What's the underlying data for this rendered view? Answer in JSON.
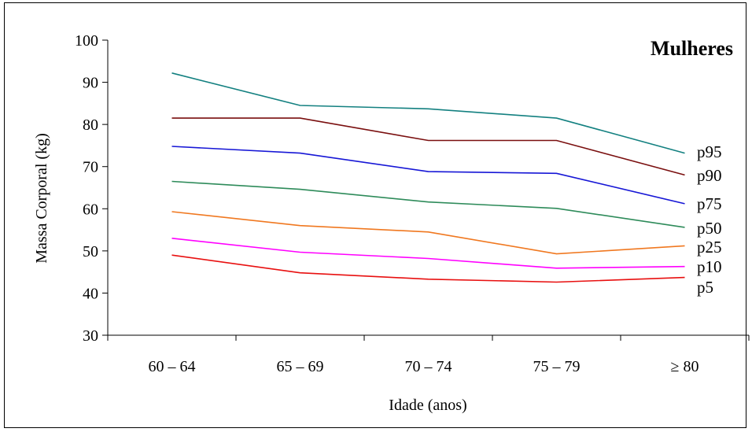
{
  "chart_data": {
    "type": "line",
    "title": "Mulheres",
    "xlabel": "Idade (anos)",
    "ylabel": "Massa Corporal (kg)",
    "categories": [
      "60 – 64",
      "65 – 69",
      "70 – 74",
      "75 – 79",
      "≥ 80"
    ],
    "ylim": [
      30,
      100
    ],
    "yticks": [
      30,
      40,
      50,
      60,
      70,
      80,
      90,
      100
    ],
    "grid": false,
    "legend": "end-of-line labels",
    "series": [
      {
        "name": "p95",
        "color": "#138080",
        "values": [
          92.2,
          84.5,
          83.7,
          81.5,
          73.2
        ]
      },
      {
        "name": "p90",
        "color": "#7a0f0f",
        "values": [
          81.5,
          81.5,
          76.2,
          76.2,
          68.0
        ]
      },
      {
        "name": "p75",
        "color": "#1717d6",
        "values": [
          74.8,
          73.2,
          68.8,
          68.4,
          61.2
        ]
      },
      {
        "name": "p50",
        "color": "#2e8b5a",
        "values": [
          66.5,
          64.6,
          61.6,
          60.1,
          55.6
        ]
      },
      {
        "name": "p25",
        "color": "#f07820",
        "values": [
          59.3,
          56.0,
          54.5,
          49.3,
          51.2
        ]
      },
      {
        "name": "p10",
        "color": "#ff00ff",
        "values": [
          53.0,
          49.7,
          48.2,
          45.9,
          46.3
        ]
      },
      {
        "name": "p5",
        "color": "#e81010",
        "values": [
          49.0,
          44.8,
          43.3,
          42.6,
          43.7
        ]
      }
    ]
  }
}
